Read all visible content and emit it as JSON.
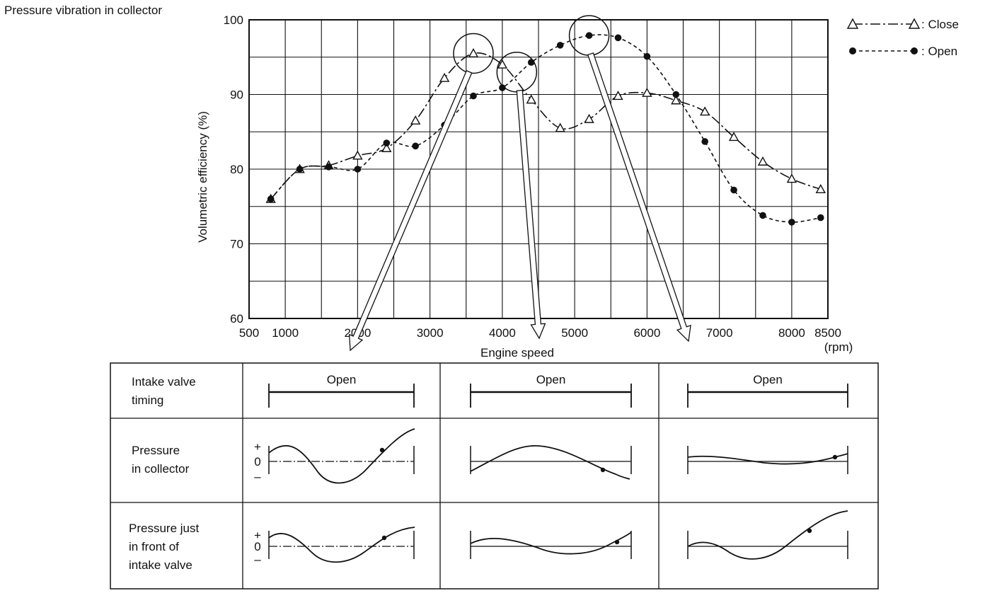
{
  "chart_data": {
    "type": "line",
    "title": "Pressure vibration in collector",
    "xlabel": "Engine speed",
    "xunit": "(rpm)",
    "ylabel": "Volumetric efficiency (%)",
    "xlim": [
      500,
      8500
    ],
    "ylim": [
      60,
      100
    ],
    "x_ticks": [
      500,
      1000,
      2000,
      3000,
      4000,
      5000,
      6000,
      7000,
      8000,
      8500
    ],
    "y_ticks": [
      60,
      70,
      80,
      90,
      100
    ],
    "grid": true,
    "legend_position": "top-right",
    "series": [
      {
        "name": "Close",
        "marker": "triangle",
        "x": [
          800,
          1200,
          1600,
          2000,
          2400,
          2800,
          3200,
          3600,
          4000,
          4400,
          4800,
          5200,
          5600,
          6000,
          6400,
          6800,
          7200,
          7600,
          8000,
          8400
        ],
        "y": [
          76,
          80,
          80.5,
          81.8,
          82.8,
          86.5,
          92.2,
          95.5,
          94,
          89.3,
          85.5,
          86.7,
          89.8,
          90.2,
          89.2,
          87.7,
          84.3,
          81,
          78.7,
          77.3
        ]
      },
      {
        "name": "Open",
        "marker": "filled-circle",
        "x": [
          800,
          1200,
          1600,
          2000,
          2400,
          2800,
          3200,
          3600,
          4000,
          4400,
          4800,
          5200,
          5600,
          6000,
          6400,
          6800,
          7200,
          7600,
          8000,
          8400
        ],
        "y": [
          76,
          80,
          80.3,
          80,
          83.5,
          83.1,
          85.9,
          89.8,
          90.9,
          94.3,
          96.6,
          97.9,
          97.6,
          95.1,
          90,
          83.7,
          77.2,
          73.8,
          72.9,
          73.5
        ]
      }
    ],
    "highlights": [
      {
        "x": 3600,
        "y": 95.5
      },
      {
        "x": 4200,
        "y": 93
      },
      {
        "x": 5200,
        "y": 97.9
      }
    ],
    "table": {
      "row_headers": [
        "Intake valve\ntiming",
        "Pressure\nin collector",
        "Pressure just\nin front of\nintake valve"
      ],
      "timing_label": "Open",
      "axis_labels": {
        "plus": "+",
        "zero": "0",
        "minus": "–"
      }
    }
  }
}
